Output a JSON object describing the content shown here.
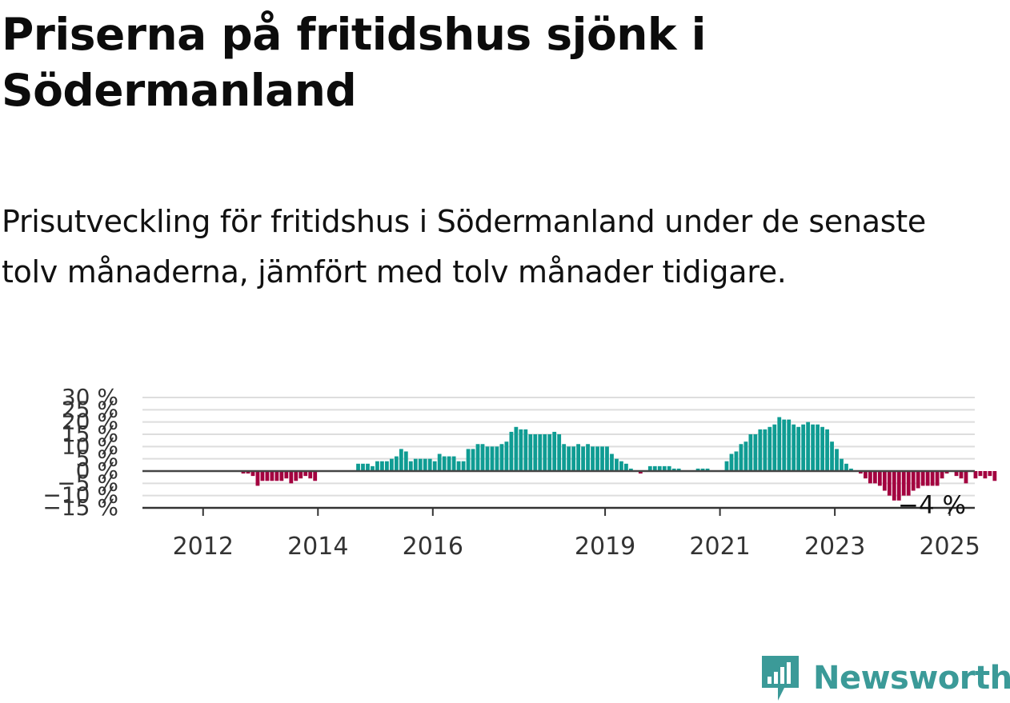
{
  "title": "Priserna på fritidshus sjönk i Södermanland",
  "subtitle": "Prisutveckling för fritidshus i Södermanland under de senaste tolv månaderna, jämfört med tolv månader tidigare.",
  "logo": {
    "text": "Newsworthy",
    "icon": "newsworthy-logo-icon",
    "color": "#3b9a98"
  },
  "chart_data": {
    "type": "bar",
    "ylim": [
      -15,
      30
    ],
    "yticks": [
      30,
      25,
      20,
      15,
      10,
      5,
      0,
      -5,
      -10,
      -15
    ],
    "ytick_labels": [
      "30 %",
      "25 %",
      "20 %",
      "15 %",
      "10 %",
      "5 %",
      "0 %",
      "−5 %",
      "−10 %",
      "−15 %"
    ],
    "xticks": [
      "2012",
      "2014",
      "2016",
      "2019",
      "2021",
      "2023",
      "2025"
    ],
    "x_start": "2011-01",
    "grid": true,
    "colors": {
      "positive": "#0f9c93",
      "negative": "#a3003f",
      "zero_line": "#444444",
      "grid": "#dddddd"
    },
    "end_label": "−4 %",
    "values": [
      0,
      0,
      0,
      0,
      0,
      0,
      0,
      0,
      0,
      0,
      0,
      0,
      0,
      0,
      0,
      0,
      0,
      0,
      0,
      0,
      -1,
      -1,
      -2,
      -6,
      -4,
      -4,
      -4,
      -4,
      -4,
      -3,
      -5,
      -4,
      -3,
      -2,
      -3,
      -4,
      0,
      0,
      0,
      0,
      0,
      0,
      0,
      0,
      3,
      3,
      3,
      2,
      4,
      4,
      4,
      5,
      6,
      9,
      8,
      4,
      5,
      5,
      5,
      5,
      4,
      7,
      6,
      6,
      6,
      4,
      4,
      9,
      9,
      11,
      11,
      10,
      10,
      10,
      11,
      12,
      16,
      18,
      17,
      17,
      15,
      15,
      15,
      15,
      15,
      16,
      15,
      11,
      10,
      10,
      11,
      10,
      11,
      10,
      10,
      10,
      10,
      7,
      5,
      4,
      3,
      1,
      0,
      -1,
      0,
      2,
      2,
      2,
      2,
      2,
      1,
      1,
      0,
      0,
      0,
      1,
      1,
      1,
      0,
      0,
      0,
      4,
      7,
      8,
      11,
      12,
      15,
      15,
      17,
      17,
      18,
      19,
      22,
      21,
      21,
      19,
      18,
      19,
      20,
      19,
      19,
      18,
      17,
      12,
      9,
      5,
      3,
      1,
      0,
      -1,
      -3,
      -5,
      -5,
      -6,
      -8,
      -10,
      -12,
      -12,
      -10,
      -10,
      -8,
      -7,
      -6,
      -6,
      -6,
      -6,
      -3,
      -1,
      0,
      -2,
      -3,
      -5,
      0,
      -3,
      -2,
      -3,
      -2,
      -4
    ]
  }
}
